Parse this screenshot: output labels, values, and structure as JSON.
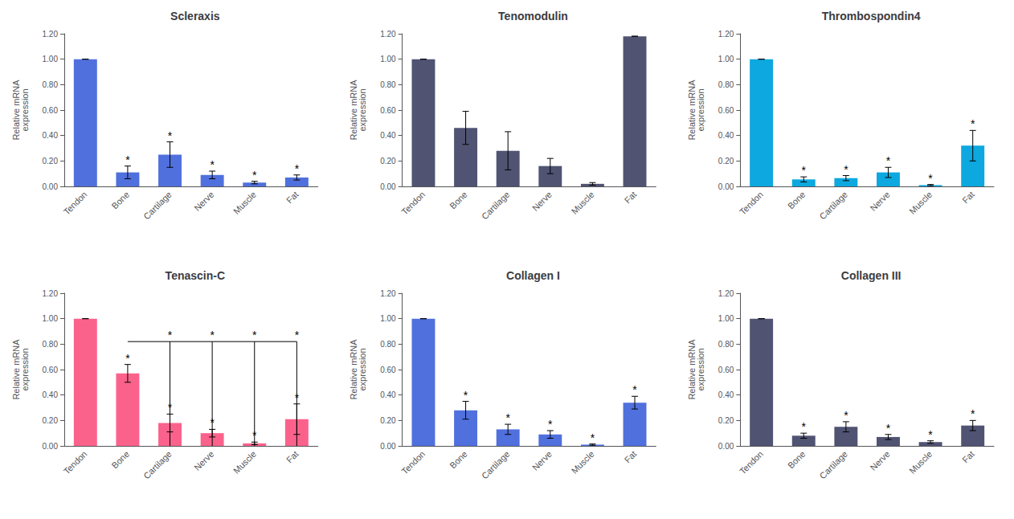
{
  "chart_data": [
    {
      "type": "bar",
      "title": "Scleraxis",
      "ylabel": "Relative mRNA\nexpression",
      "categories": [
        "Tendon",
        "Bone",
        "Cartilage",
        "Nerve",
        "Muscle",
        "Fat"
      ],
      "values": [
        1.0,
        0.11,
        0.25,
        0.09,
        0.03,
        0.07
      ],
      "errors": [
        0.0,
        0.05,
        0.1,
        0.03,
        0.01,
        0.02
      ],
      "significance": [
        null,
        "*",
        "*",
        "*",
        "*",
        "*"
      ],
      "ylim": [
        0,
        1.2
      ],
      "yticks": [
        {
          "value": 0,
          "label": "0.00"
        },
        {
          "value": 0.2,
          "label": "0.20"
        },
        {
          "value": 0.4,
          "label": "0.40"
        },
        {
          "value": 0.6,
          "label": "0.60"
        },
        {
          "value": 0.8,
          "label": "0.80"
        },
        {
          "value": 1.0,
          "label": "1.00"
        },
        {
          "value": 1.2,
          "label": "1.20"
        }
      ],
      "grid": false
    },
    {
      "type": "bar",
      "title": "Tenomodulin",
      "ylabel": "Relative mRNA\nexpression",
      "categories": [
        "Tendon",
        "Bone",
        "Cartilage",
        "Nerve",
        "Muscle",
        "Fat"
      ],
      "values": [
        1.0,
        0.46,
        0.28,
        0.16,
        0.02,
        1.18
      ],
      "errors": [
        0.0,
        0.13,
        0.15,
        0.06,
        0.01,
        0.0
      ],
      "significance": [
        null,
        null,
        null,
        null,
        null,
        null
      ],
      "ylim": [
        0,
        1.2
      ],
      "yticks": [
        {
          "value": 0,
          "label": "0.00"
        },
        {
          "value": 0.2,
          "label": "0.20"
        },
        {
          "value": 0.4,
          "label": "0.40"
        },
        {
          "value": 0.6,
          "label": "0.60"
        },
        {
          "value": 0.8,
          "label": "0.80"
        },
        {
          "value": 1.0,
          "label": "1.00"
        },
        {
          "value": 1.2,
          "label": "1.20"
        }
      ],
      "grid": false
    },
    {
      "type": "bar",
      "title": "Thrombospondin4",
      "ylabel": "Relative mRNA\nexpression",
      "categories": [
        "Tendon",
        "Bone",
        "Cartilage",
        "Nerve",
        "Muscle",
        "Fat"
      ],
      "values": [
        1.0,
        0.055,
        0.065,
        0.11,
        0.01,
        0.32
      ],
      "errors": [
        0.0,
        0.02,
        0.02,
        0.04,
        0.005,
        0.12
      ],
      "significance": [
        null,
        "*",
        "*",
        "*",
        "*",
        "*"
      ],
      "ylim": [
        0,
        1.2
      ],
      "yticks": [
        {
          "value": 0,
          "label": "0.00"
        },
        {
          "value": 0.2,
          "label": "0.20"
        },
        {
          "value": 0.4,
          "label": "0.40"
        },
        {
          "value": 0.6,
          "label": "0.60"
        },
        {
          "value": 0.8,
          "label": "0.80"
        },
        {
          "value": 1.0,
          "label": "1.00"
        },
        {
          "value": 1.2,
          "label": "1.20"
        }
      ],
      "grid": false
    },
    {
      "type": "bar",
      "title": "Tenascin-C",
      "ylabel": "Relative mRNA\nexpression",
      "categories": [
        "Tendon",
        "Bone",
        "Cartilage",
        "Nerve",
        "Muscle",
        "Fat"
      ],
      "values": [
        1.0,
        0.57,
        0.18,
        0.1,
        0.02,
        0.21
      ],
      "errors": [
        0.0,
        0.07,
        0.07,
        0.03,
        0.01,
        0.12
      ],
      "significance": [
        null,
        "*",
        "*",
        "*",
        "*",
        "*"
      ],
      "brackets": [
        {
          "from": "Bone",
          "to": "Fat",
          "y": 0.82,
          "drops": [
            "Cartilage",
            "Nerve",
            "Muscle",
            "Fat"
          ],
          "label": "*"
        }
      ],
      "ylim": [
        0,
        1.2
      ],
      "yticks": [
        {
          "value": 0,
          "label": "0.00"
        },
        {
          "value": 0.2,
          "label": "0.20"
        },
        {
          "value": 0.4,
          "label": "0.40"
        },
        {
          "value": 0.6,
          "label": "0.60"
        },
        {
          "value": 0.8,
          "label": "0.80"
        },
        {
          "value": 1.0,
          "label": "1.00"
        },
        {
          "value": 1.2,
          "label": "1.20"
        }
      ],
      "grid": false
    },
    {
      "type": "bar",
      "title": "Collagen I",
      "ylabel": "Relative mRNA\nexpression",
      "categories": [
        "Tendon",
        "Bone",
        "Cartilage",
        "Nerve",
        "Muscle",
        "Fat"
      ],
      "values": [
        1.0,
        0.28,
        0.13,
        0.09,
        0.01,
        0.34
      ],
      "errors": [
        0.0,
        0.07,
        0.04,
        0.03,
        0.005,
        0.05
      ],
      "significance": [
        null,
        "*",
        "*",
        "*",
        "*",
        "*"
      ],
      "ylim": [
        0,
        1.2
      ],
      "yticks": [
        {
          "value": 0,
          "label": "0.00"
        },
        {
          "value": 0.2,
          "label": "0.20"
        },
        {
          "value": 0.4,
          "label": "0.40"
        },
        {
          "value": 0.6,
          "label": "0.60"
        },
        {
          "value": 0.8,
          "label": "0.80"
        },
        {
          "value": 1.0,
          "label": "1.00"
        },
        {
          "value": 1.2,
          "label": "1.20"
        }
      ],
      "grid": false
    },
    {
      "type": "bar",
      "title": "Collagen III",
      "ylabel": "Relative mRNA\nexpression",
      "categories": [
        "Tendon",
        "Bone",
        "Cartilage",
        "Nerve",
        "Muscle",
        "Fat"
      ],
      "values": [
        1.0,
        0.08,
        0.15,
        0.07,
        0.03,
        0.16
      ],
      "errors": [
        0.0,
        0.02,
        0.04,
        0.02,
        0.01,
        0.04
      ],
      "significance": [
        null,
        "*",
        "*",
        "*",
        "*",
        "*"
      ],
      "ylim": [
        0,
        1.2
      ],
      "yticks": [
        {
          "value": 0,
          "label": "0.00"
        },
        {
          "value": 0.2,
          "label": "0.20"
        },
        {
          "value": 0.4,
          "label": "0.40"
        },
        {
          "value": 0.6,
          "label": "0.60"
        },
        {
          "value": 0.8,
          "label": "0.80"
        },
        {
          "value": 1.0,
          "label": "1.00"
        },
        {
          "value": 1.2,
          "label": "1.20"
        }
      ],
      "grid": false
    }
  ]
}
